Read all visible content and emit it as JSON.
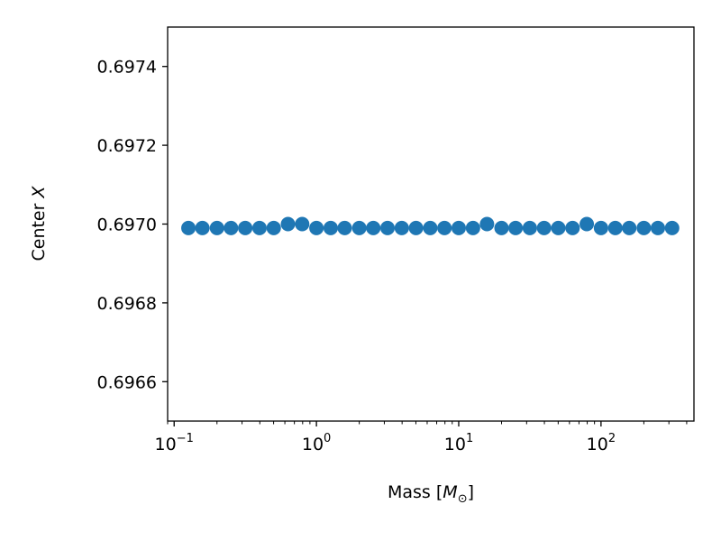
{
  "chart_data": {
    "type": "scatter",
    "title": "",
    "xlabel": "Mass [",
    "xlabel_symbol": "M",
    "xlabel_subscript": "⊙",
    "xlabel_close": "]",
    "ylabel": "Center ",
    "ylabel_symbol": "X",
    "xscale": "log",
    "xlim": [
      0.09,
      450
    ],
    "ylim": [
      0.6965,
      0.6975
    ],
    "x_ticks": [
      {
        "base": "10",
        "exp": "−1",
        "value": 0.1
      },
      {
        "base": "10",
        "exp": "0",
        "value": 1
      },
      {
        "base": "10",
        "exp": "1",
        "value": 10
      },
      {
        "base": "10",
        "exp": "2",
        "value": 100
      }
    ],
    "y_ticks": [
      {
        "label": "0.6966",
        "value": 0.6966
      },
      {
        "label": "0.6968",
        "value": 0.6968
      },
      {
        "label": "0.6970",
        "value": 0.697
      },
      {
        "label": "0.6972",
        "value": 0.6972
      },
      {
        "label": "0.6974",
        "value": 0.6974
      }
    ],
    "marker_color": "#1f77b4",
    "grid": false,
    "series": [
      {
        "x": [
          0.126,
          0.158,
          0.2,
          0.251,
          0.316,
          0.398,
          0.501,
          0.631,
          0.794,
          1.0,
          1.26,
          1.58,
          2.0,
          2.51,
          3.16,
          3.98,
          5.01,
          6.31,
          7.94,
          10.0,
          12.6,
          15.8,
          20.0,
          25.1,
          31.6,
          39.8,
          50.1,
          63.1,
          79.4,
          100,
          126,
          158,
          200,
          251,
          316
        ],
        "y": [
          0.69699,
          0.69699,
          0.69699,
          0.69699,
          0.69699,
          0.69699,
          0.69699,
          0.697,
          0.697,
          0.69699,
          0.69699,
          0.69699,
          0.69699,
          0.69699,
          0.69699,
          0.69699,
          0.69699,
          0.69699,
          0.69699,
          0.69699,
          0.69699,
          0.697,
          0.69699,
          0.69699,
          0.69699,
          0.69699,
          0.69699,
          0.69699,
          0.697,
          0.69699,
          0.69699,
          0.69699,
          0.69699,
          0.69699,
          0.69699
        ]
      }
    ]
  }
}
